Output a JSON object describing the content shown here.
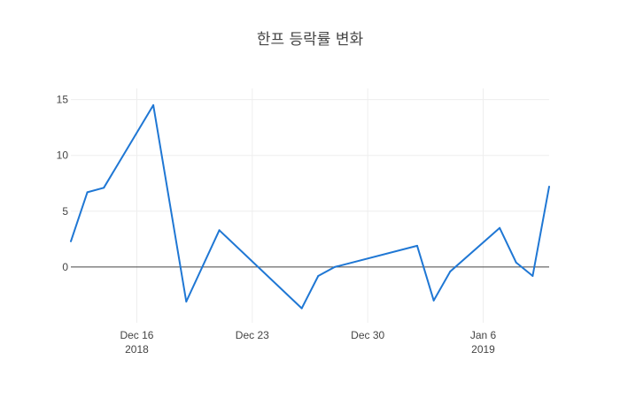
{
  "chart_data": {
    "type": "line",
    "title": "한프 등락률 변화",
    "colors": {
      "line": "#1f77d4",
      "zero_line": "#444444",
      "grid": "#eeeeee",
      "text": "#444444"
    },
    "grid": true,
    "legend": "none",
    "xlim": [
      "2018-12-12",
      "2019-01-10"
    ],
    "ylim": [
      -5,
      16
    ],
    "y_ticks": [
      {
        "value": 0,
        "label": "0"
      },
      {
        "value": 5,
        "label": "5"
      },
      {
        "value": 10,
        "label": "10"
      },
      {
        "value": 15,
        "label": "15"
      }
    ],
    "x_ticks": [
      {
        "date": "2018-12-16",
        "label": "Dec 16",
        "sublabel": "2018"
      },
      {
        "date": "2018-12-23",
        "label": "Dec 23",
        "sublabel": ""
      },
      {
        "date": "2018-12-30",
        "label": "Dec 30",
        "sublabel": ""
      },
      {
        "date": "2019-01-06",
        "label": "Jan 6",
        "sublabel": "2019"
      }
    ],
    "series": [
      {
        "points": [
          {
            "x": "2018-12-12",
            "y": 2.3
          },
          {
            "x": "2018-12-13",
            "y": 6.7
          },
          {
            "x": "2018-12-14",
            "y": 7.1
          },
          {
            "x": "2018-12-17",
            "y": 14.5
          },
          {
            "x": "2018-12-19",
            "y": -3.1
          },
          {
            "x": "2018-12-21",
            "y": 3.3
          },
          {
            "x": "2018-12-26",
            "y": -3.7
          },
          {
            "x": "2018-12-27",
            "y": -0.8
          },
          {
            "x": "2018-12-28",
            "y": 0.0
          },
          {
            "x": "2019-01-02",
            "y": 1.9
          },
          {
            "x": "2019-01-03",
            "y": -3.0
          },
          {
            "x": "2019-01-04",
            "y": -0.4
          },
          {
            "x": "2019-01-07",
            "y": 3.5
          },
          {
            "x": "2019-01-08",
            "y": 0.4
          },
          {
            "x": "2019-01-09",
            "y": -0.8
          },
          {
            "x": "2019-01-10",
            "y": 7.2
          }
        ]
      }
    ]
  }
}
